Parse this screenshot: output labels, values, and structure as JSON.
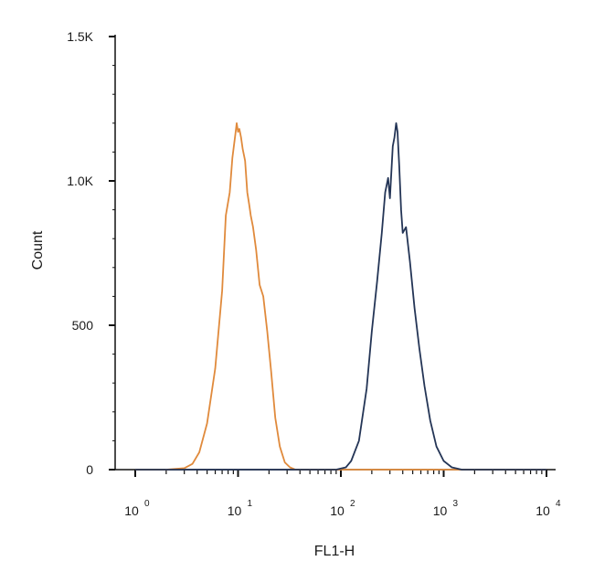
{
  "chart_data": {
    "type": "line",
    "title": "",
    "xlabel": "FL1-H",
    "ylabel": "Count",
    "x_scale": "log",
    "xlim": [
      1,
      10000
    ],
    "ylim": [
      0,
      1500
    ],
    "grid": false,
    "y_ticks": [
      {
        "value": 0,
        "label": "0"
      },
      {
        "value": 500,
        "label": "500"
      },
      {
        "value": 1000,
        "label": "1.0K"
      },
      {
        "value": 1500,
        "label": "1.5K"
      }
    ],
    "x_ticks": [
      {
        "value": 1,
        "base": "10",
        "exp": "0"
      },
      {
        "value": 10,
        "base": "10",
        "exp": "1"
      },
      {
        "value": 100,
        "base": "10",
        "exp": "2"
      },
      {
        "value": 1000,
        "base": "10",
        "exp": "3"
      },
      {
        "value": 10000,
        "base": "10",
        "exp": "4"
      }
    ],
    "series": [
      {
        "color": "#E08A3C",
        "x": [
          1,
          2,
          3,
          3.6,
          4.2,
          5,
          6,
          7,
          7.6,
          8.3,
          8.8,
          9.4,
          9.7,
          10,
          10.3,
          10.7,
          11.1,
          11.7,
          12.3,
          12.8,
          13.3,
          14,
          15,
          16.2,
          17.6,
          19.2,
          21,
          23,
          25.5,
          28.5,
          32,
          36,
          45,
          10000
        ],
        "y": [
          0,
          0,
          5,
          20,
          60,
          160,
          350,
          620,
          880,
          960,
          1080,
          1160,
          1200,
          1170,
          1180,
          1150,
          1110,
          1070,
          960,
          920,
          880,
          840,
          760,
          640,
          600,
          480,
          340,
          180,
          80,
          25,
          8,
          0,
          0,
          0
        ]
      },
      {
        "color": "#243556",
        "x": [
          1,
          90,
          112,
          126,
          150,
          178,
          200,
          225,
          250,
          270,
          288,
          300,
          312,
          320,
          332,
          345,
          356,
          370,
          385,
          400,
          430,
          470,
          520,
          580,
          650,
          740,
          850,
          1000,
          1200,
          1500,
          10000
        ],
        "y": [
          0,
          0,
          8,
          30,
          100,
          280,
          480,
          650,
          820,
          960,
          1010,
          940,
          1050,
          1120,
          1150,
          1200,
          1170,
          1050,
          900,
          820,
          840,
          720,
          560,
          420,
          290,
          170,
          80,
          30,
          8,
          0,
          0
        ]
      }
    ]
  }
}
